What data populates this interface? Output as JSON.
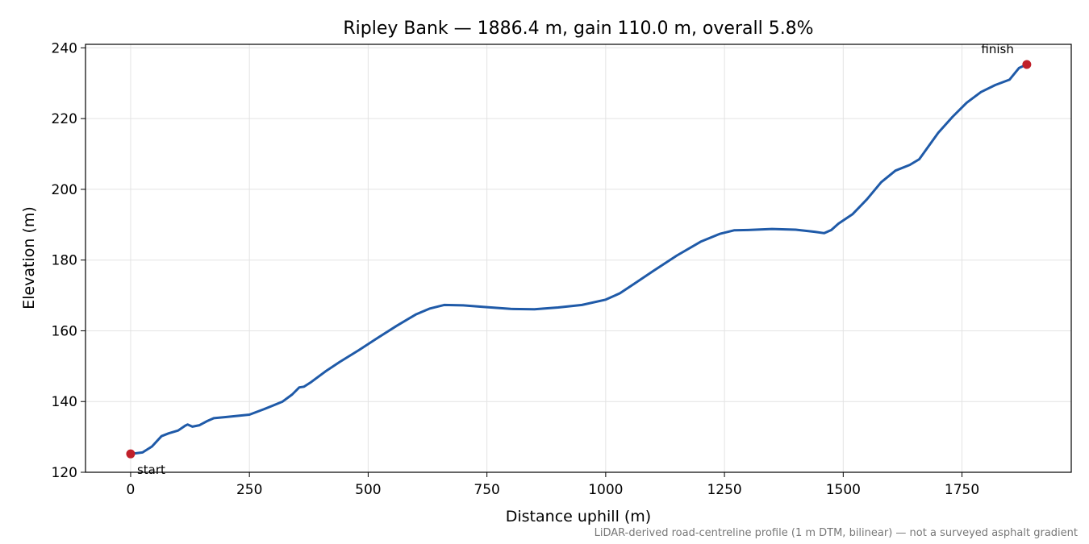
{
  "chart_data": {
    "type": "line",
    "title": "Ripley Bank — 1886.4 m, gain 110.0 m, overall 5.8%",
    "xlabel": "Distance uphill (m)",
    "ylabel": "Elevation (m)",
    "xlim": [
      -95,
      1980
    ],
    "ylim": [
      120,
      241
    ],
    "xticks": [
      0,
      250,
      500,
      750,
      1000,
      1250,
      1500,
      1750
    ],
    "xtick_labels": [
      "0",
      "250",
      "500",
      "750",
      "1000",
      "1250",
      "1500",
      "1750"
    ],
    "yticks": [
      120,
      140,
      160,
      180,
      200,
      220,
      240
    ],
    "ytick_labels": [
      "120",
      "140",
      "160",
      "180",
      "200",
      "220",
      "240"
    ],
    "grid": true,
    "series": [
      {
        "color": "#1f5aa8",
        "x": [
          0,
          25,
          45,
          65,
          80,
          100,
          115,
          120,
          130,
          145,
          160,
          175,
          200,
          250,
          280,
          300,
          320,
          340,
          355,
          365,
          380,
          410,
          440,
          480,
          520,
          560,
          600,
          630,
          660,
          700,
          750,
          800,
          850,
          900,
          950,
          1000,
          1030,
          1060,
          1100,
          1150,
          1200,
          1240,
          1270,
          1300,
          1350,
          1400,
          1440,
          1460,
          1475,
          1490,
          1520,
          1550,
          1580,
          1610,
          1640,
          1660,
          1675,
          1700,
          1730,
          1760,
          1790,
          1820,
          1850,
          1870,
          1886.4
        ],
        "y": [
          125.2,
          125.6,
          127.3,
          130.2,
          131.0,
          131.8,
          133.2,
          133.5,
          132.9,
          133.3,
          134.4,
          135.3,
          135.6,
          136.3,
          137.8,
          138.9,
          140.0,
          142.0,
          144.0,
          144.2,
          145.5,
          148.5,
          151.2,
          154.5,
          158.0,
          161.4,
          164.6,
          166.3,
          167.3,
          167.2,
          166.7,
          166.2,
          166.1,
          166.6,
          167.3,
          168.8,
          170.6,
          173.3,
          176.9,
          181.3,
          185.2,
          187.4,
          188.4,
          188.5,
          188.8,
          188.6,
          188.0,
          187.6,
          188.5,
          190.3,
          193.0,
          197.2,
          202.0,
          205.3,
          206.9,
          208.5,
          211.3,
          216.0,
          220.5,
          224.5,
          227.5,
          229.5,
          231.0,
          234.3,
          235.3
        ]
      }
    ],
    "annotations": [
      {
        "text": "start",
        "x": 0,
        "y": 125.2
      },
      {
        "text": "finish",
        "x": 1886.4,
        "y": 235.3
      }
    ],
    "marker_color": "#c0202a",
    "footnote": "LiDAR-derived road-centreline profile (1 m DTM, bilinear) — not a surveyed asphalt gradient"
  }
}
